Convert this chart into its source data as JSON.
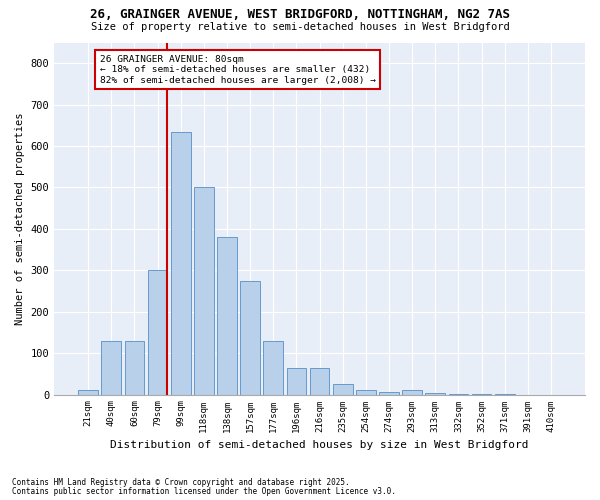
{
  "title1": "26, GRAINGER AVENUE, WEST BRIDGFORD, NOTTINGHAM, NG2 7AS",
  "title2": "Size of property relative to semi-detached houses in West Bridgford",
  "xlabel": "Distribution of semi-detached houses by size in West Bridgford",
  "ylabel": "Number of semi-detached properties",
  "categories": [
    "21sqm",
    "40sqm",
    "60sqm",
    "79sqm",
    "99sqm",
    "118sqm",
    "138sqm",
    "157sqm",
    "177sqm",
    "196sqm",
    "216sqm",
    "235sqm",
    "254sqm",
    "274sqm",
    "293sqm",
    "313sqm",
    "332sqm",
    "352sqm",
    "371sqm",
    "391sqm",
    "410sqm"
  ],
  "values": [
    10,
    130,
    130,
    300,
    635,
    500,
    380,
    275,
    130,
    65,
    65,
    25,
    10,
    5,
    10,
    3,
    2,
    1,
    1,
    0,
    0
  ],
  "bar_color": "#b8d0ea",
  "bar_edge_color": "#6699cc",
  "vline_index": 3,
  "vline_color": "#cc0000",
  "annotation_line1": "26 GRAINGER AVENUE: 80sqm",
  "annotation_line2": "← 18% of semi-detached houses are smaller (432)",
  "annotation_line3": "82% of semi-detached houses are larger (2,008) →",
  "annotation_box_color": "#cc0000",
  "ylim": [
    0,
    850
  ],
  "yticks": [
    0,
    100,
    200,
    300,
    400,
    500,
    600,
    700,
    800
  ],
  "footer1": "Contains HM Land Registry data © Crown copyright and database right 2025.",
  "footer2": "Contains public sector information licensed under the Open Government Licence v3.0.",
  "bg_color": "#ffffff",
  "plot_bg_color": "#e8eef7"
}
